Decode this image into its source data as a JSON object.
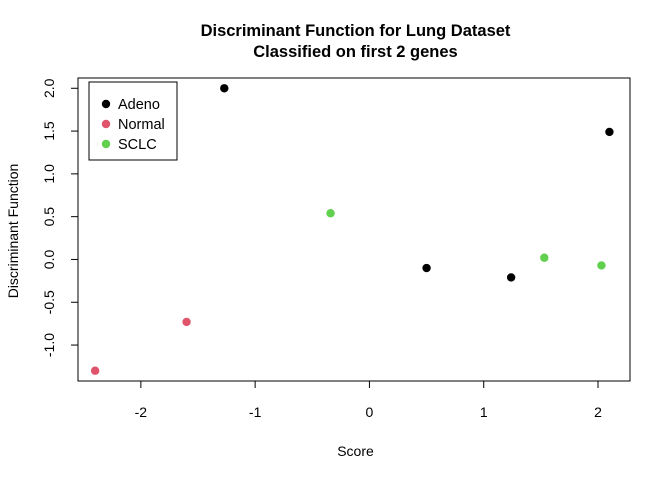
{
  "chart_data": {
    "type": "scatter",
    "title": "Discriminant Function for Lung Dataset",
    "subtitle": "Classified on first 2 genes",
    "xlabel": "Score",
    "ylabel": "Discriminant Function",
    "xlim": [
      -2.55,
      2.28
    ],
    "ylim": [
      -1.42,
      2.12
    ],
    "x_ticks": [
      -2,
      -1,
      0,
      1,
      2
    ],
    "x_tick_labels": [
      "-2",
      "-1",
      "0",
      "1",
      "2"
    ],
    "y_ticks": [
      -1.0,
      -0.5,
      0.0,
      0.5,
      1.0,
      1.5,
      2.0
    ],
    "y_tick_labels": [
      "-1.0",
      "-0.5",
      "0.0",
      "0.5",
      "1.0",
      "1.5",
      "2.0"
    ],
    "grid": false,
    "legend_position": "top-left",
    "series": [
      {
        "name": "Adeno",
        "color": "#000000",
        "x": [
          -1.27,
          0.5,
          1.24,
          2.1
        ],
        "y": [
          2.0,
          -0.1,
          -0.21,
          1.49
        ]
      },
      {
        "name": "Normal",
        "color": "#DF536B",
        "x": [
          -2.4,
          -1.6
        ],
        "y": [
          -1.3,
          -0.73
        ]
      },
      {
        "name": "SCLC",
        "color": "#61D04F",
        "x": [
          -0.34,
          1.53,
          2.03
        ],
        "y": [
          0.54,
          0.02,
          -0.07
        ]
      }
    ]
  }
}
